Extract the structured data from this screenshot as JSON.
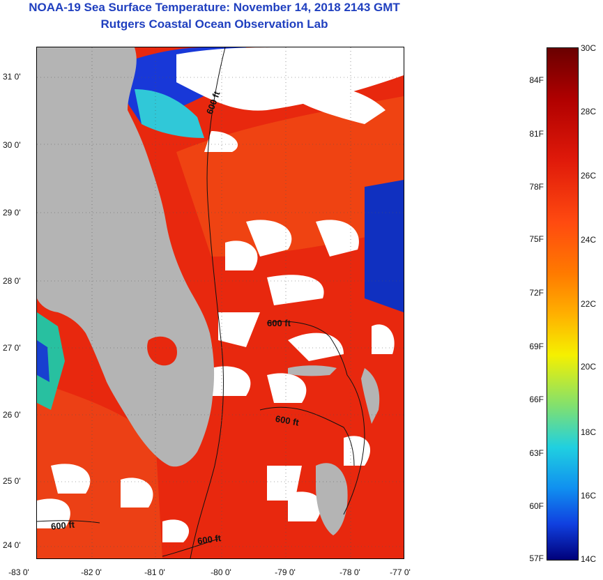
{
  "title": {
    "line1": "NOAA-19 Sea Surface Temperature:  November 14, 2018 2143 GMT",
    "line2": "Rutgers Coastal Ocean Observation Lab"
  },
  "axes": {
    "y_labels": [
      "31 0'",
      "30 0'",
      "29 0'",
      "28 0'",
      "27 0'",
      "26 0'",
      "25 0'",
      "24 0'"
    ],
    "x_labels": [
      "-83 0'",
      "-82 0'",
      "-81 0'",
      "-80 0'",
      "-79 0'",
      "-78 0'",
      "-77 0'"
    ]
  },
  "contours": {
    "label": "600 ft"
  },
  "colorbar": {
    "fahrenheit": [
      "84F",
      "81F",
      "78F",
      "75F",
      "72F",
      "69F",
      "66F",
      "63F",
      "60F",
      "57F"
    ],
    "celsius": [
      "30C",
      "28C",
      "26C",
      "24C",
      "22C",
      "20C",
      "18C",
      "16C",
      "14C"
    ]
  },
  "colors": {
    "title": "#1f3fbf",
    "land": "#b4b4b4",
    "warm_water": "#e8260e",
    "cloud": "#ffffff"
  }
}
